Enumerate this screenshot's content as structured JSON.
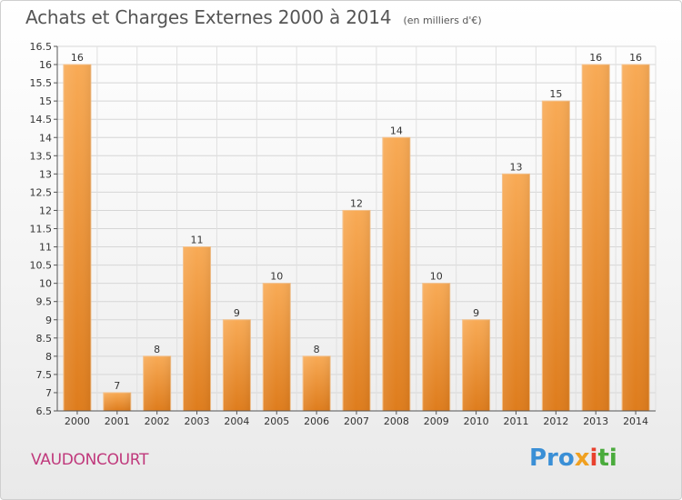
{
  "header": {
    "title": "Achats et Charges Externes 2000 à 2014",
    "subtitle": "(en milliers d'€)"
  },
  "commune": "VAUDONCOURT",
  "logo": {
    "parts": [
      "Pro",
      "x",
      "i",
      "ti"
    ]
  },
  "colors": {
    "bar_light": "#f7a54f",
    "bar_dark": "#e07f1f",
    "commune": "#c0397c"
  },
  "chart_data": {
    "type": "bar",
    "title": "Achats et Charges Externes 2000 à 2014",
    "subtitle": "(en milliers d'€)",
    "xlabel": "",
    "ylabel": "",
    "categories": [
      "2000",
      "2001",
      "2002",
      "2003",
      "2004",
      "2005",
      "2006",
      "2007",
      "2008",
      "2009",
      "2010",
      "2011",
      "2012",
      "2013",
      "2014"
    ],
    "values": [
      16,
      7,
      8,
      11,
      9,
      10,
      8,
      12,
      14,
      10,
      9,
      13,
      15,
      16,
      16
    ],
    "data_labels": [
      "16",
      "7",
      "8",
      "11",
      "9",
      "10",
      "8",
      "12",
      "14",
      "10",
      "9",
      "13",
      "15",
      "16",
      "16"
    ],
    "ylim": [
      6.5,
      16.5
    ],
    "yticks": [
      6.5,
      7,
      7.5,
      8,
      8.5,
      9,
      9.5,
      10,
      10.5,
      11,
      11.5,
      12,
      12.5,
      13,
      13.5,
      14,
      14.5,
      15,
      15.5,
      16,
      16.5
    ],
    "ytick_labels": [
      "6.5",
      "7",
      "7.5",
      "8",
      "8.5",
      "9",
      "9.5",
      "10",
      "10.5",
      "11",
      "11.5",
      "12",
      "12.5",
      "13",
      "13.5",
      "14",
      "14.5",
      "15",
      "15.5",
      "16",
      "16.5"
    ],
    "grid": true
  }
}
